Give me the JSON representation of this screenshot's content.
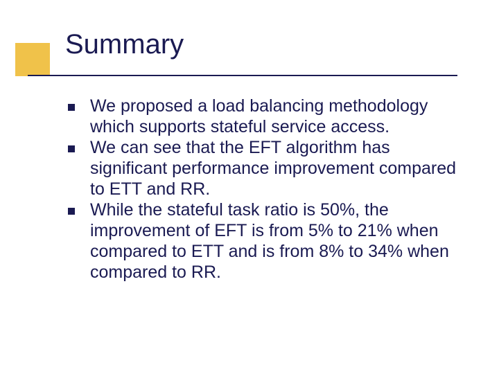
{
  "slide": {
    "title": "Summary",
    "accent_color": "#f0c24a",
    "text_color": "#1a1a52",
    "rule_color": "#1a1a52",
    "background_color": "#ffffff",
    "title_fontsize": 40,
    "body_fontsize": 25,
    "bullets": [
      {
        "text": "We proposed a load balancing methodology which supports stateful service access."
      },
      {
        "text": "We can see that the EFT algorithm has significant performance improvement compared to ETT and RR."
      },
      {
        "text": "While the stateful task ratio is 50%, the improvement of EFT is from 5% to 21% when compared to ETT and is from 8% to 34% when compared to RR."
      }
    ]
  }
}
